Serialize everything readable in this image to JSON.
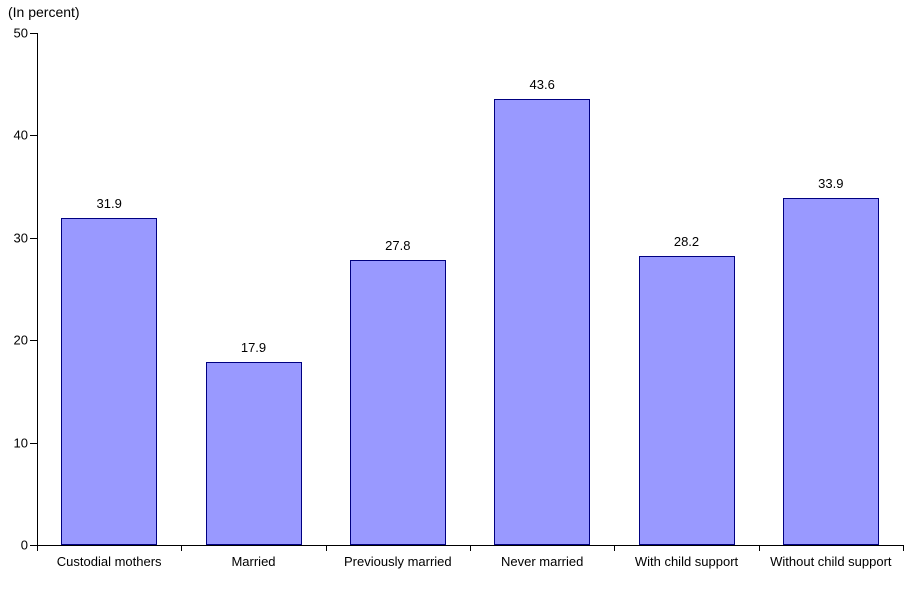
{
  "chart_data": {
    "type": "bar",
    "title": "",
    "ylabel": "(In percent)",
    "xlabel": "",
    "categories": [
      "Custodial mothers",
      "Married",
      "Previously married",
      "Never married",
      "With child support",
      "Without child support"
    ],
    "values": [
      31.9,
      17.9,
      27.8,
      43.6,
      28.2,
      33.9
    ],
    "ylim": [
      0,
      50
    ],
    "yticks": [
      0,
      10,
      20,
      30,
      40,
      50
    ],
    "grid": false,
    "legend": "none",
    "bar_fill": "#9999ff",
    "bar_border": "#000080",
    "axis_color": "#000000",
    "text_color": "#000000",
    "background": "#ffffff"
  }
}
